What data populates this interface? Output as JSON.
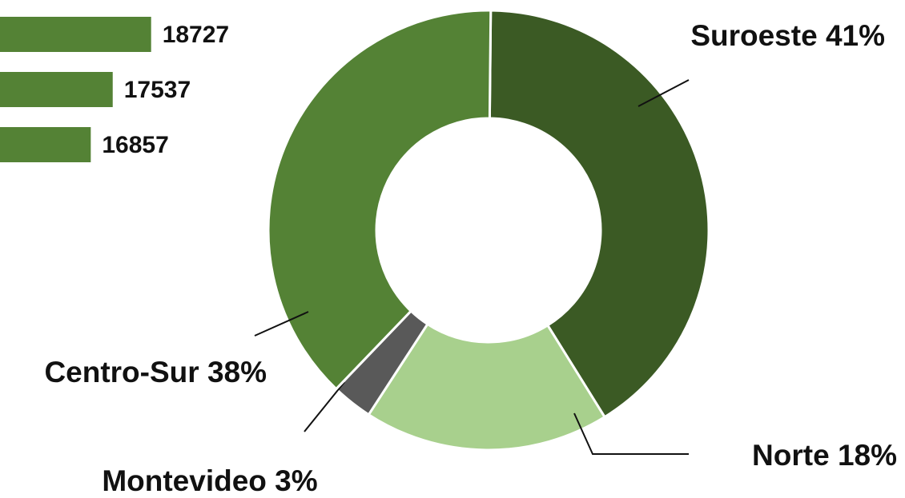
{
  "chart_data": [
    {
      "type": "hbar",
      "categories": [
        null,
        null,
        null
      ],
      "values": [
        18727,
        17537,
        16857
      ],
      "color": "#548235"
    },
    {
      "type": "donut",
      "values": [
        41,
        18,
        3,
        38
      ],
      "value_labels": [
        "Suroeste 41%",
        "Norte 18%",
        "Montevideo 3%",
        "Centro-Sur 38%"
      ],
      "colors": [
        "#3b5a24",
        "#a8d08d",
        "#595959",
        "#548235"
      ]
    }
  ]
}
